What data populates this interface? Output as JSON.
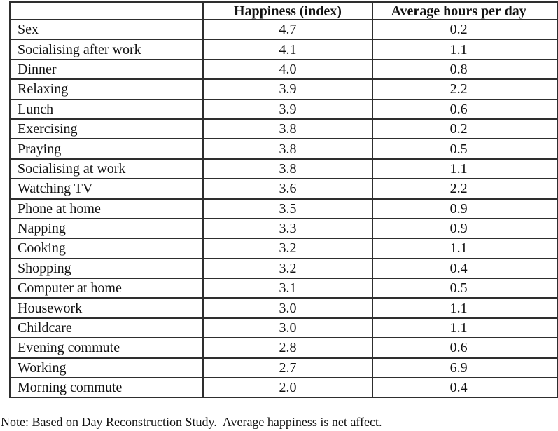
{
  "table": {
    "columns": [
      "",
      "Happiness (index)",
      "Average hours per day"
    ],
    "rows": [
      {
        "activity": "Sex",
        "happiness": "4.7",
        "hours": "0.2"
      },
      {
        "activity": "Socialising after work",
        "happiness": "4.1",
        "hours": "1.1"
      },
      {
        "activity": "Dinner",
        "happiness": "4.0",
        "hours": "0.8"
      },
      {
        "activity": "Relaxing",
        "happiness": "3.9",
        "hours": "2.2"
      },
      {
        "activity": "Lunch",
        "happiness": "3.9",
        "hours": "0.6"
      },
      {
        "activity": "Exercising",
        "happiness": "3.8",
        "hours": "0.2"
      },
      {
        "activity": "Praying",
        "happiness": "3.8",
        "hours": "0.5"
      },
      {
        "activity": "Socialising at work",
        "happiness": "3.8",
        "hours": "1.1"
      },
      {
        "activity": "Watching TV",
        "happiness": "3.6",
        "hours": "2.2"
      },
      {
        "activity": "Phone at home",
        "happiness": "3.5",
        "hours": "0.9"
      },
      {
        "activity": "Napping",
        "happiness": "3.3",
        "hours": "0.9"
      },
      {
        "activity": "Cooking",
        "happiness": "3.2",
        "hours": "1.1"
      },
      {
        "activity": "Shopping",
        "happiness": "3.2",
        "hours": "0.4"
      },
      {
        "activity": "Computer at home",
        "happiness": "3.1",
        "hours": "0.5"
      },
      {
        "activity": "Housework",
        "happiness": "3.0",
        "hours": "1.1"
      },
      {
        "activity": "Childcare",
        "happiness": "3.0",
        "hours": "1.1"
      },
      {
        "activity": "Evening commute",
        "happiness": "2.8",
        "hours": "0.6"
      },
      {
        "activity": "Working",
        "happiness": "2.7",
        "hours": "6.9"
      },
      {
        "activity": "Morning commute",
        "happiness": "2.0",
        "hours": "0.4"
      }
    ]
  },
  "note": "Note: Based on Day Reconstruction Study.  Average happiness is net affect."
}
